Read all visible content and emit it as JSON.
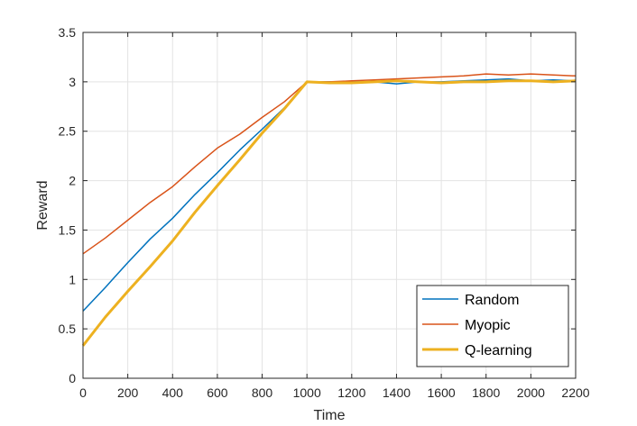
{
  "chart_data": {
    "type": "line",
    "title": "",
    "xlabel": "Time",
    "ylabel": "Reward",
    "xlim": [
      0,
      2200
    ],
    "ylim": [
      0,
      3.5
    ],
    "xticks": [
      0,
      200,
      400,
      600,
      800,
      1000,
      1200,
      1400,
      1600,
      1800,
      2000,
      2200
    ],
    "xtick_labels": [
      "0",
      "200",
      "400",
      "600",
      "800",
      "1000",
      "1200",
      "1400",
      "1600",
      "1800",
      "2000",
      "2200"
    ],
    "yticks": [
      0,
      0.5,
      1,
      1.5,
      2,
      2.5,
      3,
      3.5
    ],
    "ytick_labels": [
      "0",
      "0.5",
      "1",
      "1.5",
      "2",
      "2.5",
      "3",
      "3.5"
    ],
    "grid": true,
    "legend_position": "bottom-right",
    "series": [
      {
        "name": "Random",
        "color": "#0072BD",
        "x": [
          0,
          100,
          200,
          300,
          400,
          500,
          600,
          700,
          800,
          900,
          1000,
          1100,
          1200,
          1300,
          1400,
          1500,
          1600,
          1700,
          1800,
          1900,
          2000,
          2100,
          2200
        ],
        "y": [
          0.68,
          0.92,
          1.17,
          1.41,
          1.62,
          1.86,
          2.08,
          2.31,
          2.52,
          2.74,
          3.0,
          3.0,
          3.0,
          3.0,
          2.98,
          3.0,
          3.0,
          3.01,
          3.02,
          3.03,
          3.01,
          3.02,
          3.01
        ]
      },
      {
        "name": "Myopic",
        "color": "#D95319",
        "x": [
          0,
          100,
          200,
          300,
          400,
          500,
          600,
          700,
          800,
          900,
          1000,
          1100,
          1200,
          1300,
          1400,
          1500,
          1600,
          1700,
          1800,
          1900,
          2000,
          2100,
          2200
        ],
        "y": [
          1.26,
          1.42,
          1.6,
          1.78,
          1.94,
          2.14,
          2.33,
          2.47,
          2.64,
          2.8,
          3.0,
          3.0,
          3.01,
          3.02,
          3.03,
          3.04,
          3.05,
          3.06,
          3.08,
          3.07,
          3.08,
          3.07,
          3.06
        ]
      },
      {
        "name": "Q-learning",
        "color": "#EDB120",
        "x": [
          0,
          100,
          200,
          300,
          400,
          500,
          600,
          700,
          800,
          900,
          1000,
          1100,
          1200,
          1300,
          1400,
          1500,
          1600,
          1700,
          1800,
          1900,
          2000,
          2100,
          2200
        ],
        "y": [
          0.33,
          0.62,
          0.88,
          1.13,
          1.39,
          1.68,
          1.95,
          2.21,
          2.48,
          2.73,
          3.0,
          2.99,
          2.99,
          3.0,
          3.01,
          3.0,
          2.99,
          3.0,
          3.0,
          3.01,
          3.01,
          3.0,
          3.01
        ]
      }
    ]
  }
}
